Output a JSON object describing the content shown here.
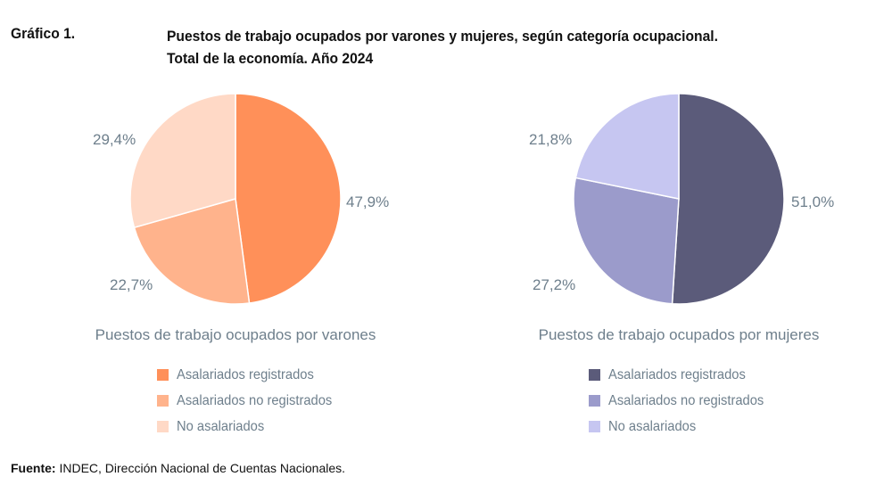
{
  "header": {
    "figure_label": "Gráfico 1.",
    "title_line1": "Puestos de trabajo ocupados por varones y mujeres, según categoría ocupacional.",
    "title_line2": "Total de la economía. Año 2024"
  },
  "chart_data": [
    {
      "type": "pie",
      "title": "Puestos de trabajo ocupados por varones",
      "categories": [
        "Asalariados registrados",
        "Asalariados no registrados",
        "No asalariados"
      ],
      "values": [
        47.9,
        22.7,
        29.4
      ],
      "value_labels": [
        "47,9%",
        "22,7%",
        "29,4%"
      ],
      "colors": [
        "#ff9059",
        "#ffb38c",
        "#ffd9c6"
      ],
      "legend_position": "bottom"
    },
    {
      "type": "pie",
      "title": "Puestos de trabajo ocupados por mujeres",
      "categories": [
        "Asalariados registrados",
        "Asalariados no registrados",
        "No asalariados"
      ],
      "values": [
        51.0,
        27.2,
        21.8
      ],
      "value_labels": [
        "51,0%",
        "27,2%",
        "21,8%"
      ],
      "colors": [
        "#5b5b7a",
        "#9b9bcb",
        "#c6c6f1"
      ],
      "legend_position": "bottom"
    }
  ],
  "source": {
    "label": "Fuente:",
    "text": " INDEC, Dirección Nacional de Cuentas Nacionales."
  }
}
